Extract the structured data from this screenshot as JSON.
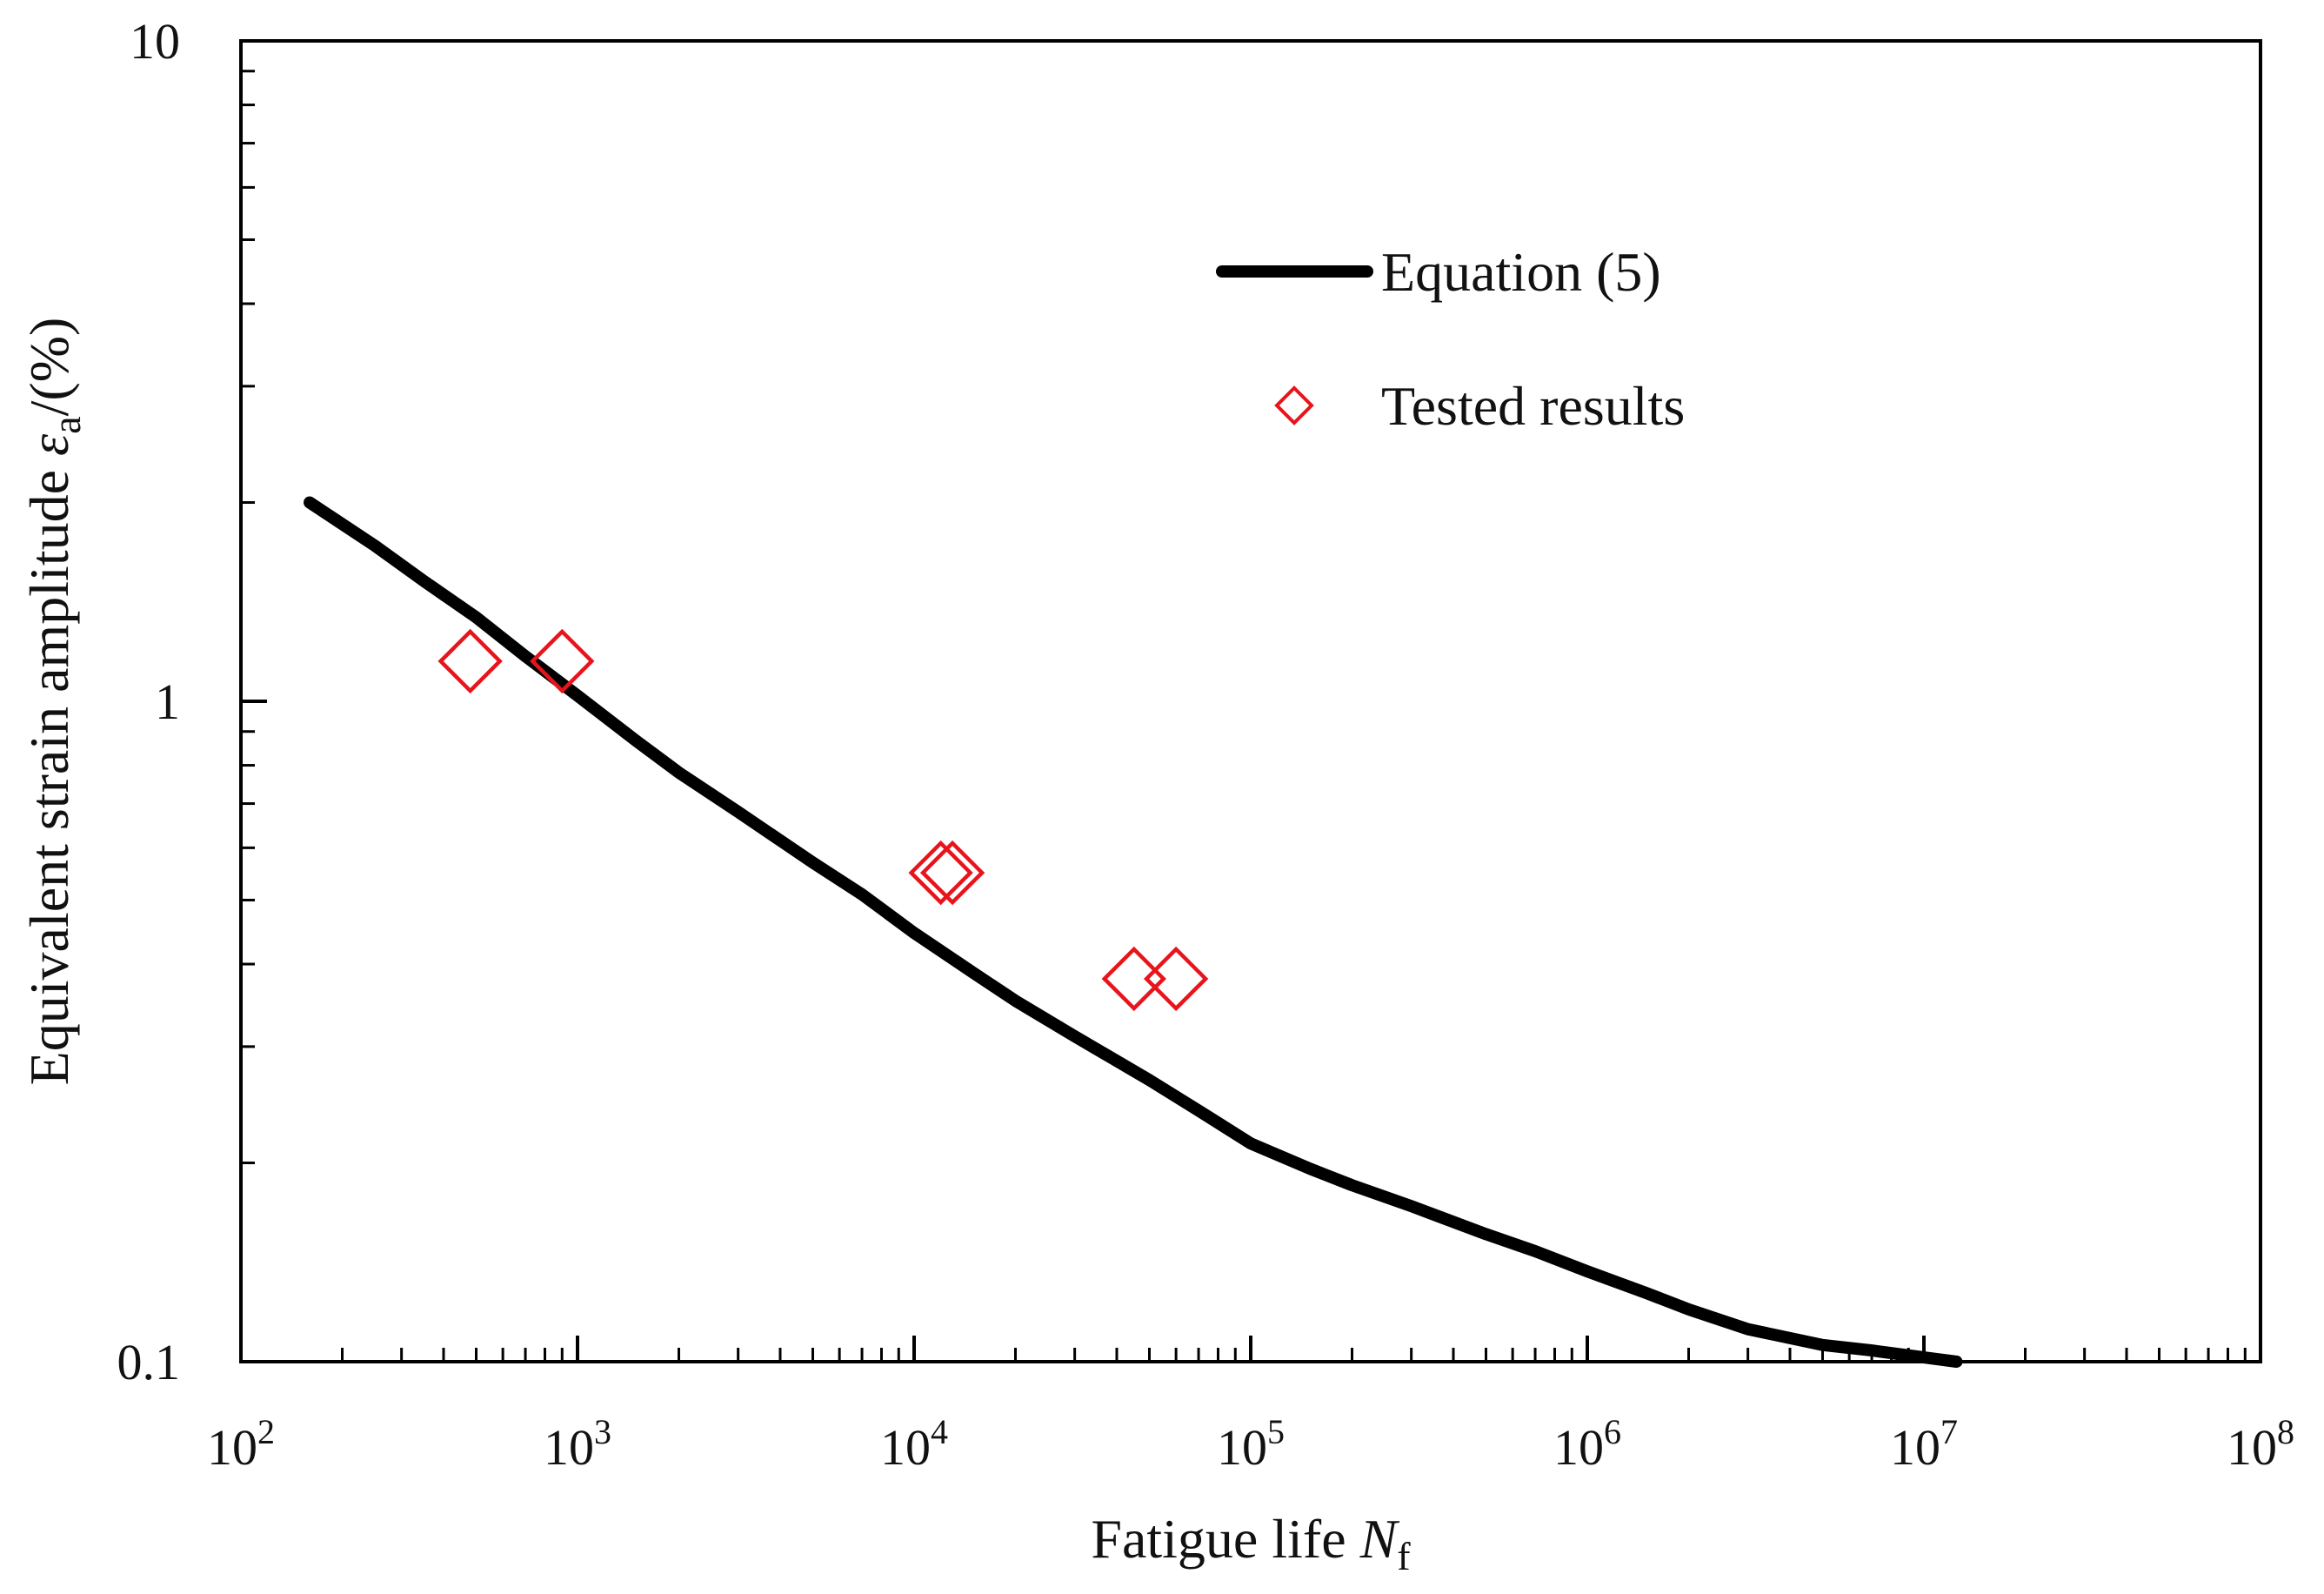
{
  "chart_data": {
    "type": "scatter",
    "title": "",
    "x_scale": "log",
    "y_scale": "log",
    "xlim": [
      100,
      100000000
    ],
    "ylim": [
      0.1,
      10
    ],
    "x_ticks": [
      {
        "value": 100,
        "base": "10",
        "exp": "2"
      },
      {
        "value": 1000,
        "base": "10",
        "exp": "3"
      },
      {
        "value": 10000,
        "base": "10",
        "exp": "4"
      },
      {
        "value": 100000,
        "base": "10",
        "exp": "5"
      },
      {
        "value": 1000000,
        "base": "10",
        "exp": "6"
      },
      {
        "value": 10000000,
        "base": "10",
        "exp": "7"
      },
      {
        "value": 100000000,
        "base": "10",
        "exp": "8"
      }
    ],
    "y_ticks": [
      {
        "value": 0.1,
        "label": "0.1"
      },
      {
        "value": 1,
        "label": "1"
      },
      {
        "value": 10,
        "label": "10"
      }
    ],
    "xlabel": {
      "text": "Fatigue life ",
      "var": "N",
      "sub": "f"
    },
    "ylabel": {
      "text": "Equivalent strain amplitude ",
      "var": "ε",
      "sub": "a",
      "suffix": "/(%)"
    },
    "legend_position": "top-right",
    "series": [
      {
        "name": "Equation (5)",
        "kind": "line",
        "color": "#000000",
        "points": [
          [
            160,
            2.0
          ],
          [
            250,
            1.72
          ],
          [
            350,
            1.52
          ],
          [
            500,
            1.34
          ],
          [
            700,
            1.17
          ],
          [
            1000,
            1.02
          ],
          [
            1500,
            0.87
          ],
          [
            2000,
            0.78
          ],
          [
            3000,
            0.68
          ],
          [
            5000,
            0.57
          ],
          [
            7000,
            0.51
          ],
          [
            10000,
            0.446
          ],
          [
            15000,
            0.388
          ],
          [
            20000,
            0.352
          ],
          [
            30000,
            0.311
          ],
          [
            50000,
            0.267
          ],
          [
            70000,
            0.24
          ],
          [
            100000,
            0.214
          ],
          [
            150000,
            0.196
          ],
          [
            200000,
            0.185
          ],
          [
            300000,
            0.172
          ],
          [
            500000,
            0.156
          ],
          [
            700000,
            0.147
          ],
          [
            1000000,
            0.137
          ],
          [
            1500000,
            0.127
          ],
          [
            2000000,
            0.12
          ],
          [
            3000000,
            0.112
          ],
          [
            5000000,
            0.106
          ],
          [
            7000000,
            0.104
          ],
          [
            10000000,
            0.1015
          ],
          [
            12500000,
            0.1
          ]
        ]
      },
      {
        "name": "Tested results",
        "kind": "scatter",
        "marker": "diamond",
        "color": "#e8141c",
        "points": [
          [
            480,
            1.15
          ],
          [
            900,
            1.15
          ],
          [
            12000,
            0.55
          ],
          [
            13000,
            0.55
          ],
          [
            45000,
            0.38
          ],
          [
            60000,
            0.38
          ]
        ]
      }
    ]
  }
}
